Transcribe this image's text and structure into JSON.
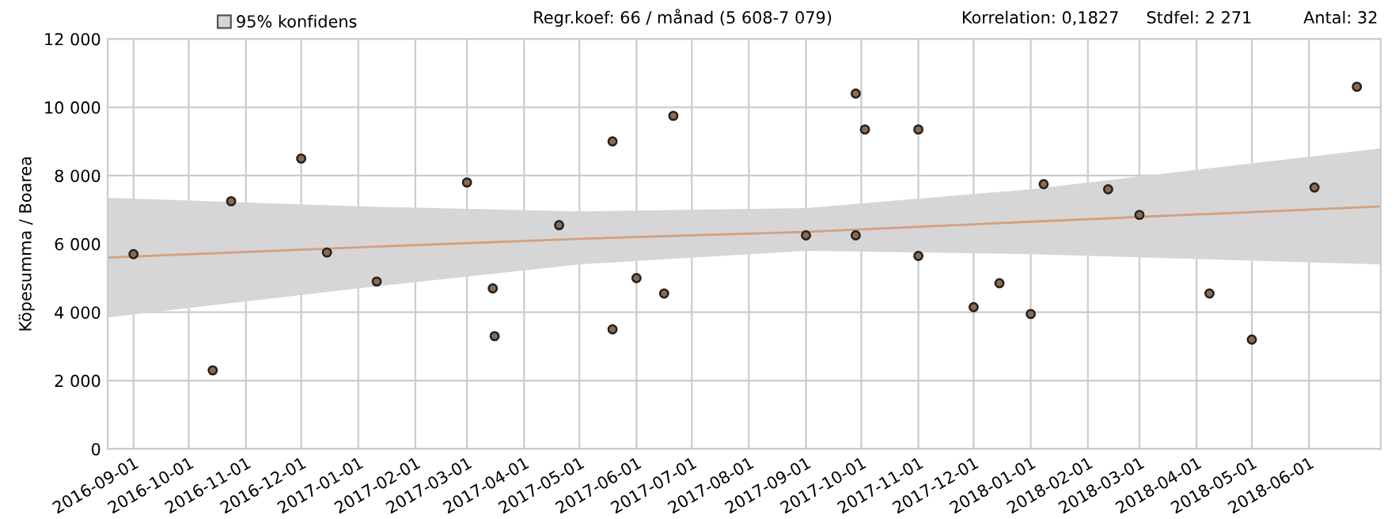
{
  "chart_data": {
    "type": "scatter",
    "ylabel": "Köpesumma / Boarea",
    "annotations": [
      "Regr.koef: 66 / månad (5 608-7 079)",
      "Korrelation: 0,1827",
      "Stdfel: 2 271",
      "Antal: 32"
    ],
    "xlim": [
      "2016-08-18",
      "2018-07-10"
    ],
    "xticks": [
      "2016-09-01",
      "2016-10-01",
      "2016-11-01",
      "2016-12-01",
      "2017-01-01",
      "2017-02-01",
      "2017-03-01",
      "2017-04-01",
      "2017-05-01",
      "2017-06-01",
      "2017-07-01",
      "2017-08-01",
      "2017-09-01",
      "2017-10-01",
      "2017-11-01",
      "2017-12-01",
      "2018-01-01",
      "2018-02-01",
      "2018-03-01",
      "2018-04-01",
      "2018-05-01",
      "2018-06-01"
    ],
    "ylim": [
      0,
      12000
    ],
    "yticks": [
      {
        "value": 0,
        "label": "0"
      },
      {
        "value": 2000,
        "label": "2 000"
      },
      {
        "value": 4000,
        "label": "4 000"
      },
      {
        "value": 6000,
        "label": "6 000"
      },
      {
        "value": 8000,
        "label": "8 000"
      },
      {
        "value": 10000,
        "label": "10 000"
      },
      {
        "value": 12000,
        "label": "12 000"
      }
    ],
    "grid": true,
    "legend": "top left",
    "series": [
      {
        "type": "line",
        "name": "95% konfidens",
        "color": "#d4a07a",
        "marker": "none",
        "x": [
          "2016-08-18",
          "2017-01-01",
          "2017-05-01",
          "2017-09-01",
          "2018-01-01",
          "2018-07-10"
        ],
        "values": [
          5600,
          5900,
          6150,
          6350,
          6650,
          7100
        ],
        "lower": [
          3850,
          4700,
          5400,
          5800,
          5700,
          5400
        ],
        "upper": [
          7350,
          7100,
          6950,
          7050,
          7600,
          8800
        ]
      },
      {
        "color": "#8b6a50",
        "marker": "circle",
        "x": [
          "2016-09-01",
          "2016-10-14",
          "2016-10-24",
          "2016-12-01",
          "2016-12-15",
          "2017-01-11",
          "2017-03-01",
          "2017-03-15",
          "2017-03-16",
          "2017-04-20",
          "2017-05-19",
          "2017-05-19",
          "2017-06-01",
          "2017-06-16",
          "2017-06-21",
          "2017-09-01",
          "2017-09-28",
          "2017-10-03",
          "2017-09-28",
          "2017-11-01",
          "2017-11-01",
          "2017-12-01",
          "2017-12-15",
          "2018-01-01",
          "2018-01-08",
          "2018-02-12",
          "2018-03-01",
          "2018-04-08",
          "2018-05-01",
          "2018-06-04",
          "2018-06-27"
        ],
        "values": [
          5700,
          2300,
          7250,
          8500,
          5750,
          4900,
          7800,
          4700,
          3300,
          6550,
          9000,
          3500,
          5000,
          4550,
          9750,
          6250,
          10400,
          9350,
          6250,
          9350,
          5650,
          4150,
          4850,
          3950,
          7750,
          7600,
          6850,
          4550,
          3200,
          7650,
          10600
        ]
      }
    ]
  }
}
